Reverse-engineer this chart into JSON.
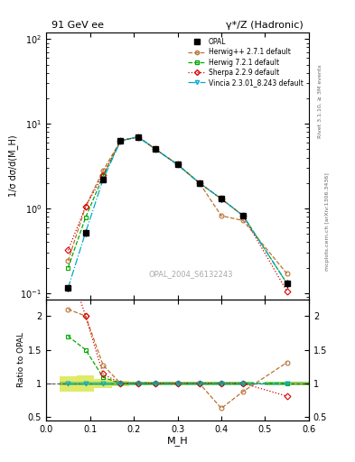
{
  "title_left": "91 GeV ee",
  "title_right": "γ*/Z (Hadronic)",
  "xlabel": "M_H",
  "ylabel_main": "1/σ dσ/d(M_H)",
  "ylabel_ratio": "Ratio to OPAL",
  "watermark": "OPAL_2004_S6132243",
  "right_label_top": "Rivet 3.1.10, ≥ 3M events",
  "right_label_bot": "mcplots.cern.ch [arXiv:1306.3436]",
  "x": [
    0.05,
    0.09,
    0.13,
    0.17,
    0.21,
    0.25,
    0.3,
    0.35,
    0.4,
    0.45,
    0.55
  ],
  "opal_y": [
    0.115,
    0.52,
    2.2,
    6.3,
    7.0,
    5.0,
    3.3,
    2.0,
    1.3,
    0.82,
    0.13
  ],
  "opal_err": [
    0.01,
    0.05,
    0.15,
    0.3,
    0.3,
    0.25,
    0.2,
    0.15,
    0.1,
    0.06,
    0.015
  ],
  "herwig_pp_y": [
    0.24,
    1.05,
    2.8,
    6.3,
    7.0,
    5.0,
    3.3,
    2.0,
    0.82,
    0.72,
    0.17
  ],
  "herwig7_y": [
    0.2,
    0.78,
    2.4,
    6.3,
    7.0,
    5.0,
    3.3,
    2.0,
    1.3,
    0.82,
    0.13
  ],
  "sherpa_y": [
    0.32,
    1.05,
    2.5,
    6.3,
    7.0,
    5.0,
    3.3,
    2.0,
    1.3,
    0.82,
    0.105
  ],
  "vincia_y": [
    0.115,
    0.52,
    2.2,
    6.3,
    7.0,
    5.0,
    3.3,
    2.0,
    1.3,
    0.82,
    0.13
  ],
  "herwig_pp_ratio": [
    2.1,
    2.0,
    1.27,
    1.0,
    1.0,
    1.0,
    1.0,
    1.0,
    0.63,
    0.88,
    1.31
  ],
  "herwig7_ratio": [
    1.7,
    1.5,
    1.09,
    1.0,
    1.0,
    1.0,
    1.0,
    1.0,
    1.0,
    1.0,
    1.0
  ],
  "sherpa_ratio": [
    2.8,
    2.0,
    1.14,
    1.0,
    1.0,
    1.0,
    1.0,
    1.0,
    1.0,
    1.0,
    0.81
  ],
  "vincia_ratio": [
    1.0,
    1.0,
    1.0,
    1.0,
    1.0,
    1.0,
    1.0,
    1.0,
    1.0,
    1.0,
    1.0
  ],
  "opal_color": "#000000",
  "herwig_pp_color": "#b87333",
  "herwig7_color": "#00aa00",
  "sherpa_color": "#dd0000",
  "vincia_color": "#00aacc",
  "band_x": [
    0.05,
    0.09,
    0.13,
    0.17,
    0.21,
    0.25,
    0.3,
    0.35,
    0.4,
    0.45,
    0.55
  ],
  "band_widths": [
    0.04,
    0.04,
    0.04,
    0.04,
    0.04,
    0.05,
    0.05,
    0.05,
    0.05,
    0.05,
    0.1
  ],
  "band_lo": [
    0.88,
    0.88,
    0.93,
    0.96,
    0.97,
    0.97,
    0.97,
    0.97,
    0.97,
    0.97,
    0.97
  ],
  "band_hi": [
    1.1,
    1.12,
    1.07,
    1.04,
    1.03,
    1.03,
    1.03,
    1.03,
    1.03,
    1.03,
    1.03
  ],
  "xlim": [
    0.0,
    0.6
  ],
  "ylim_main": [
    0.085,
    120
  ],
  "ylim_ratio": [
    0.45,
    2.25
  ]
}
